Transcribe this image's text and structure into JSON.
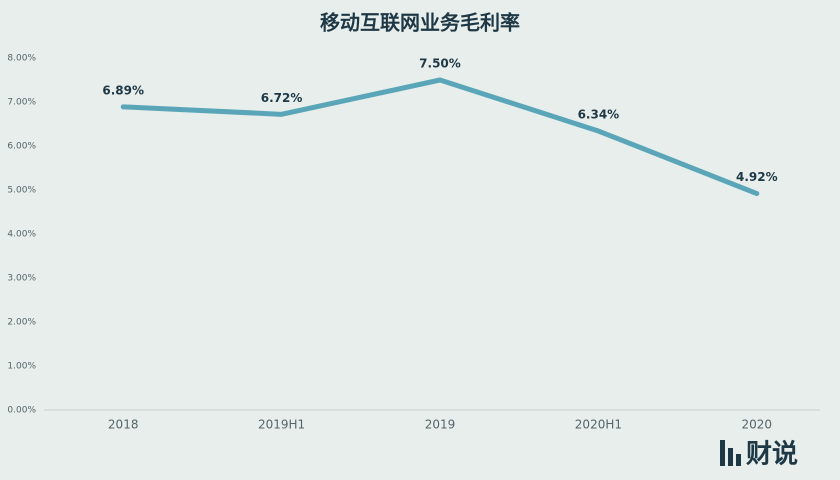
{
  "chart_data": {
    "type": "line",
    "title": "移动互联网业务毛利率",
    "categories": [
      "2018",
      "2019H1",
      "2019",
      "2020H1",
      "2020"
    ],
    "values": [
      6.89,
      6.72,
      7.5,
      6.34,
      4.92
    ],
    "value_labels": [
      "6.89%",
      "6.72%",
      "7.50%",
      "6.34%",
      "4.92%"
    ],
    "color": "#5aa6b8",
    "ylim": [
      0,
      8
    ],
    "yticks": [
      {
        "value": 0,
        "label": "0.00%"
      },
      {
        "value": 1,
        "label": "1.00%"
      },
      {
        "value": 2,
        "label": "2.00%"
      },
      {
        "value": 3,
        "label": "3.00%"
      },
      {
        "value": 4,
        "label": "4.00%"
      },
      {
        "value": 5,
        "label": "5.00%"
      },
      {
        "value": 6,
        "label": "6.00%"
      },
      {
        "value": 7,
        "label": "7.00%"
      },
      {
        "value": 8,
        "label": "8.00%"
      }
    ],
    "grid": false,
    "watermark": "财说"
  }
}
